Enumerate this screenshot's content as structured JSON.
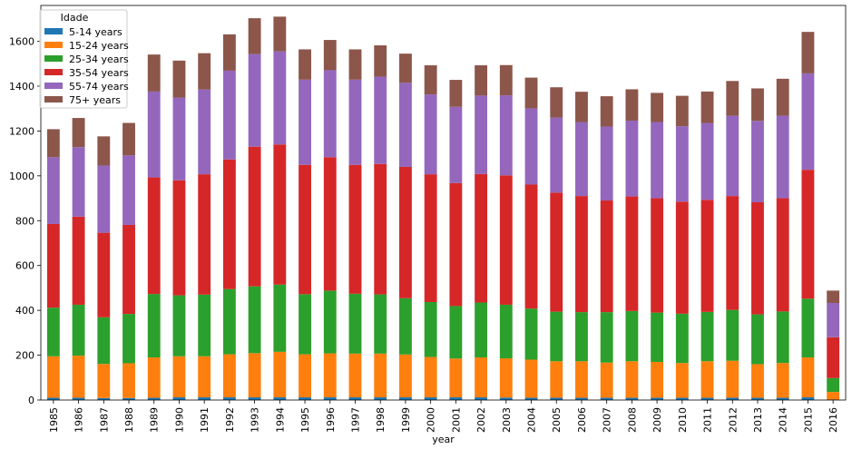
{
  "chart_data": {
    "type": "bar",
    "stacked": true,
    "xlabel": "year",
    "ylabel": "",
    "ylim": [
      0,
      1760
    ],
    "yticks": [
      0,
      200,
      400,
      600,
      800,
      1000,
      1200,
      1400,
      1600
    ],
    "grid": false,
    "legend": {
      "title": "Idade",
      "placement": "top-left"
    },
    "categories": [
      "1985",
      "1986",
      "1987",
      "1988",
      "1989",
      "1990",
      "1991",
      "1992",
      "1993",
      "1994",
      "1995",
      "1996",
      "1997",
      "1998",
      "1999",
      "2000",
      "2001",
      "2002",
      "2003",
      "2004",
      "2005",
      "2006",
      "2007",
      "2008",
      "2009",
      "2010",
      "2011",
      "2012",
      "2013",
      "2014",
      "2015",
      "2016"
    ],
    "series": [
      {
        "name": "5-14 years",
        "color": "#1f77b4",
        "values": [
          10,
          10,
          9,
          9,
          10,
          12,
          12,
          12,
          12,
          12,
          12,
          12,
          12,
          12,
          12,
          12,
          12,
          12,
          11,
          10,
          10,
          10,
          10,
          10,
          10,
          10,
          10,
          10,
          10,
          10,
          12,
          2
        ]
      },
      {
        "name": "15-24 years",
        "color": "#ff7f0e",
        "values": [
          185,
          188,
          152,
          155,
          180,
          183,
          183,
          192,
          197,
          203,
          192,
          196,
          195,
          195,
          191,
          180,
          173,
          178,
          175,
          170,
          163,
          163,
          157,
          163,
          160,
          155,
          163,
          165,
          150,
          155,
          178,
          34
        ]
      },
      {
        "name": "25-34 years",
        "color": "#2ca02c",
        "values": [
          217,
          227,
          208,
          220,
          283,
          272,
          275,
          291,
          298,
          300,
          268,
          280,
          267,
          264,
          251,
          245,
          234,
          245,
          239,
          228,
          221,
          219,
          225,
          224,
          220,
          220,
          220,
          227,
          222,
          230,
          262,
          62
        ]
      },
      {
        "name": "35-54 years",
        "color": "#d62728",
        "values": [
          373,
          393,
          377,
          397,
          520,
          513,
          537,
          578,
          623,
          625,
          577,
          595,
          575,
          582,
          586,
          570,
          549,
          573,
          577,
          553,
          531,
          518,
          498,
          511,
          510,
          500,
          500,
          508,
          500,
          505,
          575,
          182
        ]
      },
      {
        "name": "55-74 years",
        "color": "#9467bd",
        "values": [
          298,
          310,
          300,
          310,
          383,
          369,
          378,
          396,
          413,
          415,
          380,
          388,
          380,
          389,
          375,
          356,
          340,
          350,
          357,
          340,
          335,
          330,
          330,
          338,
          340,
          336,
          343,
          358,
          363,
          368,
          430,
          153
        ]
      },
      {
        "name": "75+ years",
        "color": "#8c564b",
        "values": [
          125,
          130,
          130,
          145,
          165,
          165,
          162,
          162,
          160,
          155,
          135,
          135,
          135,
          140,
          130,
          130,
          120,
          135,
          135,
          137,
          135,
          135,
          135,
          140,
          130,
          136,
          140,
          155,
          145,
          165,
          185,
          55
        ]
      }
    ]
  }
}
